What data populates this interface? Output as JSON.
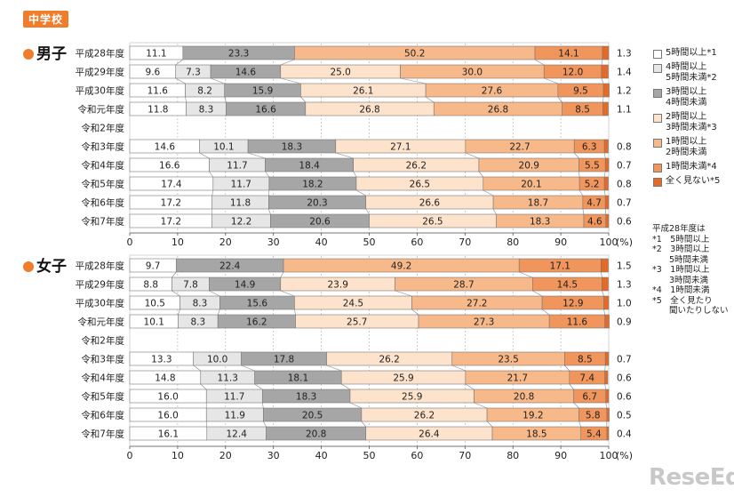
{
  "badge": "中学校",
  "groups": {
    "boys_title": "男子",
    "girls_title": "女子"
  },
  "legend": [
    {
      "label": "5時間以上*1",
      "color": "#ffffff"
    },
    {
      "label": "4時間以上\n5時間未満*2",
      "color": "#e6e6e6"
    },
    {
      "label": "3時間以上\n4時間未満",
      "color": "#a6a6a6"
    },
    {
      "label": "2時間以上\n3時間未満*3",
      "color": "#fde2cc"
    },
    {
      "label": "1時間以上\n2時間未満",
      "color": "#f8b98a"
    },
    {
      "label": "1時間未満*4",
      "color": "#f0955b"
    },
    {
      "label": "全く見ない*5",
      "color": "#e56a28"
    }
  ],
  "note": "平成28年度は\n*1　5時間以上\n*2　3時間以上\n　　5時間未満\n*3　1時間以上\n　　3時間未満\n*4　1時間未満\n*5　全く見たり\n　　聞いたりしない",
  "watermark": "ReseEd",
  "chart_data": [
    {
      "type": "bar",
      "stacked": true,
      "orientation": "horizontal",
      "title": "男子",
      "xlim": [
        0,
        100
      ],
      "xticks": [
        "0",
        "10",
        "20",
        "30",
        "40",
        "50",
        "60",
        "70",
        "80",
        "90",
        "100"
      ],
      "unit": "(%)",
      "categories": [
        "平成28年度",
        "平成29年度",
        "平成30年度",
        "令和元年度",
        "令和2年度",
        "令和3年度",
        "令和4年度",
        "令和5年度",
        "令和6年度",
        "令和7年度"
      ],
      "rows": [
        [
          11.1,
          null,
          23.3,
          null,
          50.2,
          14.1,
          1.3
        ],
        [
          9.6,
          7.3,
          14.6,
          25.0,
          30.0,
          12.0,
          1.4
        ],
        [
          11.6,
          8.2,
          15.9,
          26.1,
          27.6,
          9.5,
          1.2
        ],
        [
          11.8,
          8.3,
          16.6,
          26.8,
          26.8,
          8.5,
          1.1
        ],
        null,
        [
          14.6,
          10.1,
          18.3,
          27.1,
          22.7,
          6.3,
          0.8
        ],
        [
          16.6,
          11.7,
          18.4,
          26.2,
          20.9,
          5.5,
          0.7
        ],
        [
          17.4,
          11.7,
          18.2,
          26.5,
          20.1,
          5.2,
          0.8
        ],
        [
          17.2,
          11.8,
          20.3,
          26.6,
          18.7,
          4.7,
          0.7
        ],
        [
          17.2,
          12.2,
          20.6,
          26.5,
          18.3,
          4.6,
          0.6
        ]
      ]
    },
    {
      "type": "bar",
      "stacked": true,
      "orientation": "horizontal",
      "title": "女子",
      "xlim": [
        0,
        100
      ],
      "xticks": [
        "0",
        "10",
        "20",
        "30",
        "40",
        "50",
        "60",
        "70",
        "80",
        "90",
        "100"
      ],
      "unit": "(%)",
      "categories": [
        "平成28年度",
        "平成29年度",
        "平成30年度",
        "令和元年度",
        "令和2年度",
        "令和3年度",
        "令和4年度",
        "令和5年度",
        "令和6年度",
        "令和7年度"
      ],
      "rows": [
        [
          9.7,
          null,
          22.4,
          null,
          49.2,
          17.1,
          1.5
        ],
        [
          8.8,
          7.8,
          14.9,
          23.9,
          28.7,
          14.5,
          1.3
        ],
        [
          10.5,
          8.3,
          15.6,
          24.5,
          27.2,
          12.9,
          1.0
        ],
        [
          10.1,
          8.3,
          16.2,
          25.7,
          27.3,
          11.6,
          0.9
        ],
        null,
        [
          13.3,
          10.0,
          17.8,
          26.2,
          23.5,
          8.5,
          0.7
        ],
        [
          14.8,
          11.3,
          18.1,
          25.9,
          21.7,
          7.4,
          0.6
        ],
        [
          16.0,
          11.7,
          18.3,
          25.9,
          20.8,
          6.7,
          0.6
        ],
        [
          16.0,
          11.9,
          20.5,
          26.2,
          19.2,
          5.8,
          0.5
        ],
        [
          16.1,
          12.4,
          20.8,
          26.4,
          18.5,
          5.4,
          0.4
        ]
      ]
    }
  ]
}
